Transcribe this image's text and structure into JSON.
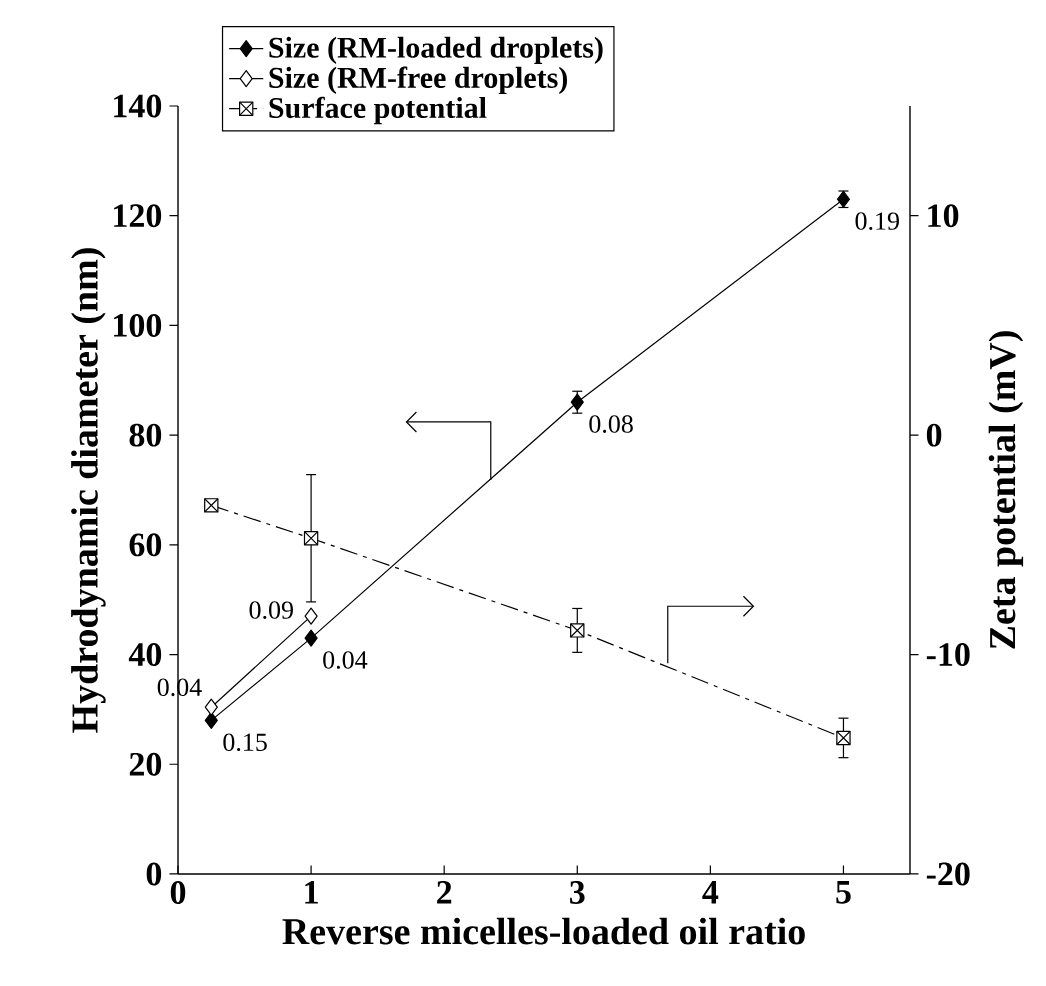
{
  "chart_data": {
    "type": "line",
    "xlabel": "Reverse micelles-loaded oil ratio",
    "ylabel": "Hydrodynamic diameter  (nm)",
    "y2label": "Zeta potential  (mV)",
    "xlim": [
      0,
      5.5
    ],
    "xticks": [
      0,
      1,
      2,
      3,
      4,
      5
    ],
    "ylim": [
      0,
      140
    ],
    "yticks": [
      0,
      20,
      40,
      60,
      80,
      100,
      120,
      140
    ],
    "y2lim": [
      -20,
      15
    ],
    "y2ticks": [
      -20,
      -10,
      0,
      10
    ],
    "legend": "top",
    "series": [
      {
        "name": "Size (RM-loaded droplets)",
        "color": "#000000",
        "marker": "diamond",
        "line_style": "solid",
        "x": [
          0.25,
          1,
          3,
          5
        ],
        "values": [
          28,
          43,
          86,
          123
        ],
        "errors": [
          null,
          null,
          2,
          1.5
        ]
      },
      {
        "name": "Size (RM-free droplets)",
        "color": "#000000",
        "marker": "diamond-open",
        "line_style": "solid",
        "x": [
          0.25,
          1
        ],
        "values": [
          30.4,
          47
        ]
      },
      {
        "name": "Surface potential",
        "color": "#000000",
        "marker": "square-cross",
        "line_style": "dashdot",
        "axis": "y2",
        "x": [
          0.25,
          1,
          3,
          5
        ],
        "values": [
          -3.2,
          -4.7,
          -8.9,
          -13.8
        ],
        "errors": [
          null,
          2.9,
          1,
          0.9
        ]
      }
    ],
    "annotations": [
      {
        "text": "0.15",
        "x": 0.25,
        "y": 28
      },
      {
        "text": "0.04",
        "x": 1,
        "y": 43
      },
      {
        "text": "0.08",
        "x": 3,
        "y": 86
      },
      {
        "text": "0.19",
        "x": 5,
        "y": 123
      },
      {
        "text": "0.04",
        "x": 0.25,
        "y": 30.4
      },
      {
        "text": "0.09",
        "x": 1,
        "y": 47
      }
    ]
  }
}
